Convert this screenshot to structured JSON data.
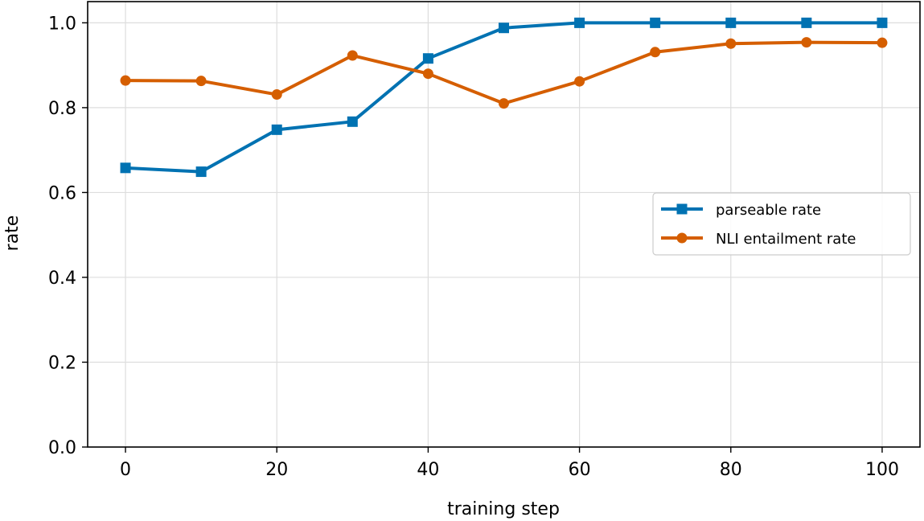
{
  "chart_data": {
    "type": "line",
    "title": "",
    "xlabel": "training step",
    "ylabel": "rate",
    "x": [
      0,
      10,
      20,
      30,
      40,
      50,
      60,
      70,
      80,
      90,
      100
    ],
    "xlim": [
      -5,
      105
    ],
    "ylim": [
      0.0,
      1.05
    ],
    "xticks": [
      0,
      20,
      40,
      60,
      80,
      100
    ],
    "xtick_labels": [
      "0",
      "20",
      "40",
      "60",
      "80",
      "100"
    ],
    "yticks": [
      0.0,
      0.2,
      0.4,
      0.6,
      0.8,
      1.0
    ],
    "ytick_labels": [
      "0.0",
      "0.2",
      "0.4",
      "0.6",
      "0.8",
      "1.0"
    ],
    "grid": true,
    "legend_position": "center-right",
    "series": [
      {
        "name": "parseable rate",
        "color": "#0072b2",
        "marker": "square",
        "values": [
          0.658,
          0.649,
          0.748,
          0.767,
          0.916,
          0.988,
          1.0,
          1.0,
          1.0,
          1.0,
          1.0
        ]
      },
      {
        "name": "NLI entailment rate",
        "color": "#d55e00",
        "marker": "circle",
        "values": [
          0.864,
          0.863,
          0.831,
          0.923,
          0.88,
          0.81,
          0.862,
          0.931,
          0.951,
          0.954,
          0.953
        ]
      }
    ]
  }
}
